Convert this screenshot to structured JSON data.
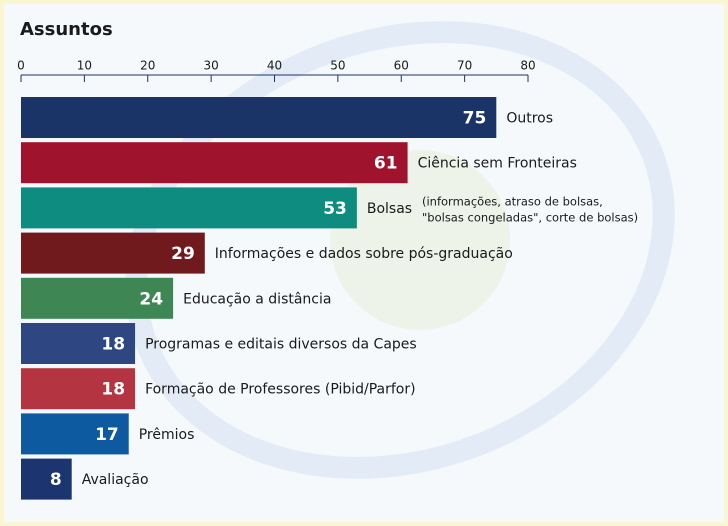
{
  "chart_data": {
    "type": "barh",
    "title": "Assuntos",
    "categories": [
      "Outros",
      "Ciência sem Fronteiras",
      "Bolsas",
      "Informações e dados sobre pós-graduação",
      "Educação a distância",
      "Programas e editais diversos da Capes",
      "Formação de Professores (Pibid/Parfor)",
      "Prêmios",
      "Avaliação"
    ],
    "values": [
      75,
      61,
      53,
      29,
      24,
      18,
      18,
      17,
      8
    ],
    "colors": [
      "#1b3468",
      "#a0132d",
      "#0f8c80",
      "#701a1e",
      "#3e8755",
      "#2e4783",
      "#b43441",
      "#0d5aa0",
      "#1c3570"
    ],
    "annotation": [
      "(informações, atraso de bolsas,",
      "\"bolsas congeladas\", corte de bolsas)"
    ],
    "xlim": [
      0,
      80
    ],
    "xticks": [
      0,
      10,
      20,
      30,
      40,
      50,
      60,
      70,
      80
    ]
  }
}
